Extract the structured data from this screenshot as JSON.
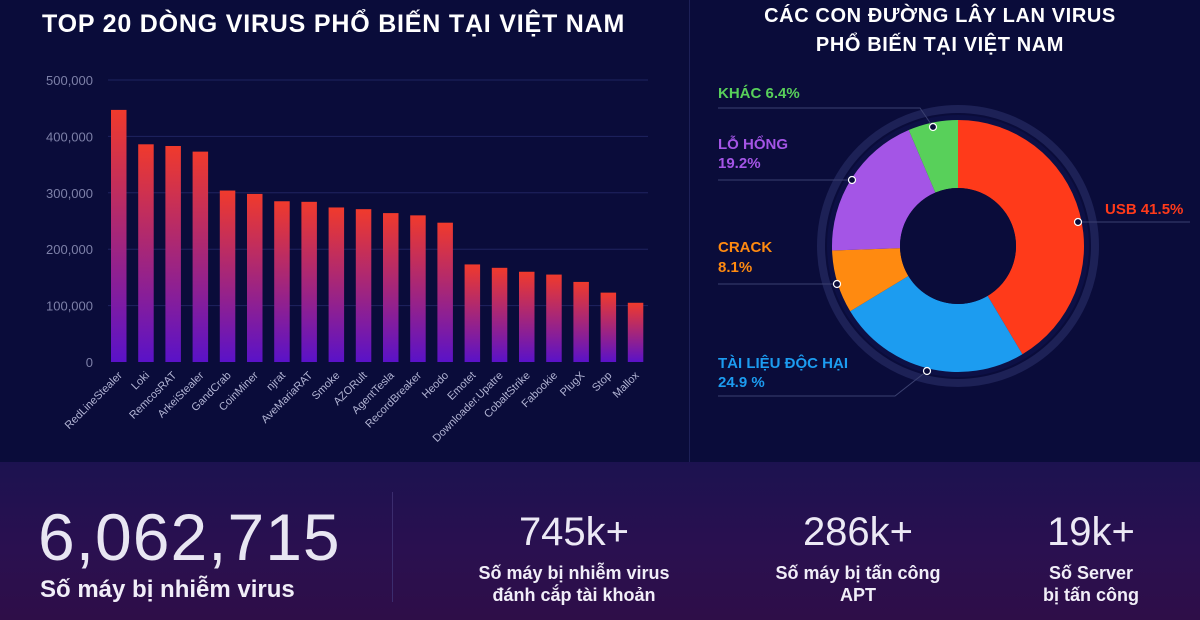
{
  "left_title": "TOP 20 DÒNG VIRUS PHỔ BIẾN TẠI VIỆT NAM",
  "right_title": [
    "CÁC CON ĐƯỜNG LÂY LAN VIRUS",
    "PHỔ BIẾN TẠI VIỆT NAM"
  ],
  "colors": {
    "bar_top": "#f03a2c",
    "bar_bottom": "#5a12c8",
    "usb": "#ff3a1a",
    "tai_lieu": "#1c9cf0",
    "crack": "#ff8a10",
    "lo_hong": "#a455e6",
    "khac": "#58d05a"
  },
  "chart_data": [
    {
      "type": "bar",
      "title": "TOP 20 DÒNG VIRUS PHỔ BIẾN TẠI VIỆT NAM",
      "categories": [
        "RedLineStealer",
        "Loki",
        "RemcosRAT",
        "ArkeiStealer",
        "GandCrab",
        "CoinMiner",
        "njrat",
        "AveMariaRAT",
        "Smoke",
        "AZORult",
        "AgentTesla",
        "RecordBreaker",
        "Heodo",
        "Emotet",
        "Downloader.Upatre",
        "CobaltStrike",
        "Fabookie",
        "PlugX",
        "Stop",
        "Mallox"
      ],
      "values": [
        447000,
        386000,
        383000,
        373000,
        304000,
        298000,
        285000,
        284000,
        274000,
        271000,
        264000,
        260000,
        247000,
        173000,
        167000,
        160000,
        155000,
        142000,
        123000,
        105000
      ],
      "yticks": [
        "500,000",
        "400,000",
        "300,000",
        "200,000",
        "100,000",
        "0"
      ],
      "ylim": [
        0,
        500000
      ],
      "xlabel": "",
      "ylabel": ""
    },
    {
      "type": "pie",
      "title": "CÁC CON ĐƯỜNG LÂY LAN VIRUS PHỔ BIẾN TẠI VIỆT NAM",
      "slices": [
        {
          "name": "USB",
          "value": 41.5,
          "label": "USB 41.5%"
        },
        {
          "name": "TÀI LIỆU ĐỘC HẠI",
          "value": 24.9,
          "label_line1": "TÀI LIỆU ĐỘC HẠI",
          "label_line2": "24.9 %"
        },
        {
          "name": "CRACK",
          "value": 8.1,
          "label_line1": "CRACK",
          "label_line2": "8.1%"
        },
        {
          "name": "LỖ HỔNG",
          "value": 19.2,
          "label_line1": "LỖ HỔNG",
          "label_line2": "19.2%"
        },
        {
          "name": "KHÁC",
          "value": 6.4,
          "label": "KHÁC 6.4%"
        }
      ]
    }
  ],
  "stats": {
    "total_value": "6,062,715",
    "total_label": "Số máy bị nhiễm virus",
    "items": [
      {
        "value": "745k+",
        "line1": "Số máy bị nhiễm virus",
        "line2": "đánh cắp tài khoản"
      },
      {
        "value": "286k+",
        "line1": "Số máy bị tấn công",
        "line2": "APT"
      },
      {
        "value": "19k+",
        "line1": "Số Server",
        "line2": "bị tấn công"
      }
    ]
  }
}
